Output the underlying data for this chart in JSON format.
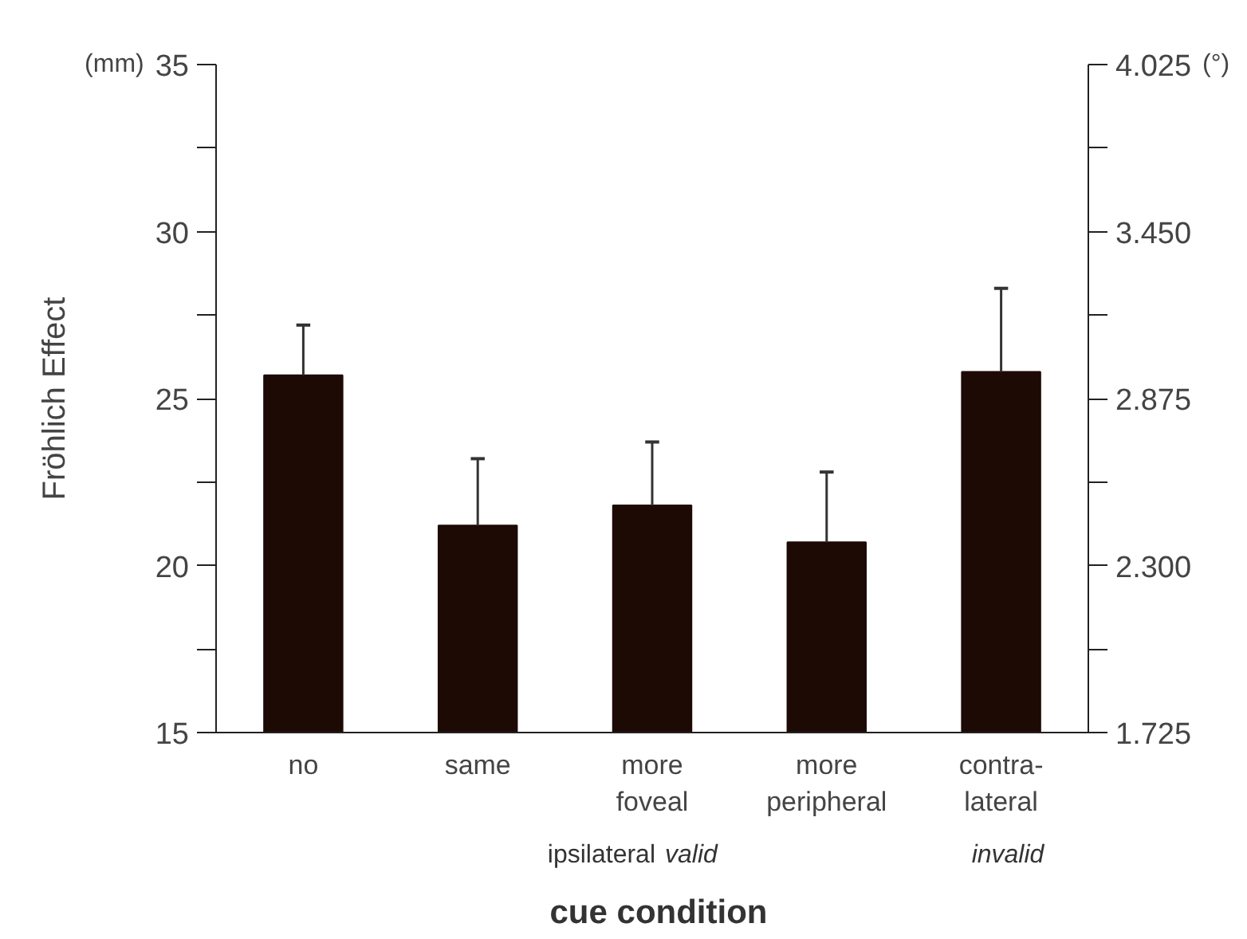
{
  "chart_data": {
    "type": "bar",
    "ylabel": "Fröhlich Effect",
    "xlabel": "cue condition",
    "categories": [
      "no",
      "same",
      "more\nfoveal",
      "more\nperipheral",
      "contra-\nlateral"
    ],
    "series": [
      {
        "color": "#1e0a05",
        "values": [
          25.7,
          21.2,
          21.8,
          20.7,
          25.8
        ],
        "errors": [
          [
            25.7,
            27.2
          ],
          [
            21.2,
            23.2
          ],
          [
            21.8,
            23.7
          ],
          [
            20.7,
            22.8
          ],
          [
            25.8,
            28.3
          ]
        ]
      }
    ],
    "ylim": [
      15,
      35
    ],
    "yticks": [
      15,
      {
        "value": 17.5,
        "label": null
      },
      20,
      {
        "value": 22.5,
        "label": null
      },
      25,
      {
        "value": 27.5,
        "label": null
      },
      30,
      {
        "value": 32.5,
        "label": null
      },
      35
    ],
    "y2lim": [
      1.725,
      4.025
    ],
    "y2ticks": [
      1.725,
      {
        "value": 2.0125,
        "label": null
      },
      {
        "value": 2.3,
        "label": "2.300"
      },
      {
        "value": 2.5875,
        "label": null
      },
      2.875,
      {
        "value": 3.1625,
        "label": null
      },
      {
        "value": 3.45,
        "label": "3.450"
      },
      {
        "value": 3.7375,
        "label": null
      },
      4.025
    ],
    "annotations": [
      "(mm)",
      "(°)",
      "ipsilateral",
      "valid",
      "invalid"
    ],
    "grid": false
  }
}
